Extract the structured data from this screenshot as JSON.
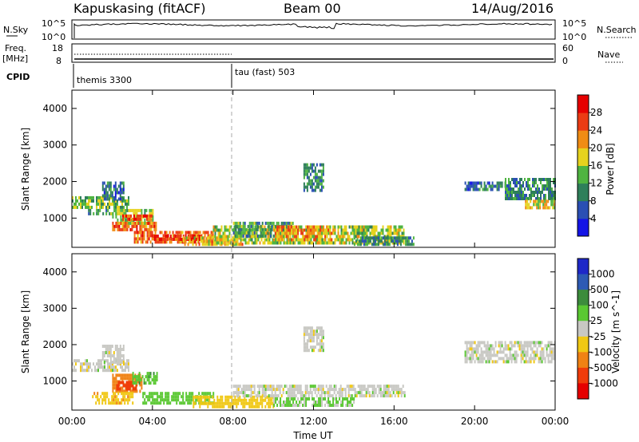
{
  "header": {
    "title": "Kapuskasing (fitACF)",
    "beam": "Beam 00",
    "date": "14/Aug/2016"
  },
  "status_panels": {
    "nsky_label": "N.Sky",
    "nsky_ticks": [
      "10^5",
      "10^0"
    ],
    "nsearch_label": "N.Search",
    "nsearch_ticks": [
      "10^5",
      "10^0"
    ],
    "freq_label": "Freq.",
    "freq_unit": "[MHz]",
    "freq_ticks": [
      "18",
      "8"
    ],
    "nave_label": "Nave",
    "nave_ticks": [
      "60",
      "0"
    ],
    "cpid_label": "CPID",
    "cpid_segments": [
      {
        "label": "themis 3300",
        "start_hour": 0
      },
      {
        "label": "tau (fast) 503",
        "start_hour": 8
      }
    ]
  },
  "chart_data": [
    {
      "type": "heatmap",
      "name": "power",
      "ylabel": "Slant Range [km]",
      "ylim": [
        200,
        4500
      ],
      "yticks": [
        1000,
        2000,
        3000,
        4000
      ],
      "xlim": [
        0,
        24
      ],
      "colorbar": {
        "label": "Power [dB]",
        "ticks": [
          "4",
          "8",
          "12",
          "16",
          "20",
          "24",
          "28"
        ],
        "colors": [
          "#1414e6",
          "#2a4fb4",
          "#2e7f5a",
          "#4fb441",
          "#e6d21e",
          "#f08c14",
          "#eb3c14",
          "#e60000"
        ]
      },
      "regions": [
        {
          "x": [
            0.0,
            2.8
          ],
          "y": [
            1300,
            1600
          ],
          "value": 14
        },
        {
          "x": [
            0.8,
            2.2
          ],
          "y": [
            1100,
            1250
          ],
          "value": 12
        },
        {
          "x": [
            1.5,
            2.6
          ],
          "y": [
            1500,
            2000
          ],
          "value": 8
        },
        {
          "x": [
            2.0,
            4.0
          ],
          "y": [
            900,
            1250
          ],
          "value": 16
        },
        {
          "x": [
            2.0,
            4.2
          ],
          "y": [
            700,
            900
          ],
          "value": 24
        },
        {
          "x": [
            2.5,
            4.0
          ],
          "y": [
            950,
            1100
          ],
          "value": 26
        },
        {
          "x": [
            3.0,
            7.0
          ],
          "y": [
            350,
            650
          ],
          "value": 24
        },
        {
          "x": [
            4.0,
            6.5
          ],
          "y": [
            400,
            550
          ],
          "value": 28
        },
        {
          "x": [
            5.5,
            8.5
          ],
          "y": [
            300,
            500
          ],
          "value": 20
        },
        {
          "x": [
            7.0,
            16.5
          ],
          "y": [
            300,
            800
          ],
          "value": 16
        },
        {
          "x": [
            8.0,
            11.0
          ],
          "y": [
            550,
            900
          ],
          "value": 12
        },
        {
          "x": [
            10.0,
            13.0
          ],
          "y": [
            400,
            800
          ],
          "value": 22
        },
        {
          "x": [
            11.5,
            12.5
          ],
          "y": [
            1800,
            2500
          ],
          "value": 10
        },
        {
          "x": [
            14.0,
            17.0
          ],
          "y": [
            300,
            500
          ],
          "value": 10
        },
        {
          "x": [
            19.5,
            21.5
          ],
          "y": [
            1750,
            2000
          ],
          "value": 8
        },
        {
          "x": [
            21.5,
            24.0
          ],
          "y": [
            1500,
            2100
          ],
          "value": 10
        },
        {
          "x": [
            22.5,
            24.0
          ],
          "y": [
            1300,
            1500
          ],
          "value": 18
        }
      ]
    },
    {
      "type": "heatmap",
      "name": "velocity",
      "ylabel": "Slant Range [km]",
      "ylim": [
        200,
        4500
      ],
      "yticks": [
        1000,
        2000,
        3000,
        4000
      ],
      "xlim": [
        0,
        24
      ],
      "xticks": [
        "00:00",
        "04:00",
        "08:00",
        "12:00",
        "16:00",
        "20:00",
        "00:00"
      ],
      "xlabel": "Time UT",
      "colorbar": {
        "label": "Velocity [m s^-1]",
        "ticks": [
          "1000",
          "500",
          "100",
          "25",
          "-25",
          "-100",
          "-500",
          "-1000"
        ],
        "colors": [
          "#1e28c8",
          "#2d5ab4",
          "#3c8c3c",
          "#5ac832",
          "#c8c8c3",
          "#f0c814",
          "#f08214",
          "#f03c0a",
          "#e60000"
        ]
      },
      "regions": [
        {
          "x": [
            0.0,
            2.8
          ],
          "y": [
            1300,
            1600
          ],
          "value": 0
        },
        {
          "x": [
            1.5,
            2.6
          ],
          "y": [
            1500,
            2000
          ],
          "value": 0
        },
        {
          "x": [
            2.0,
            3.5
          ],
          "y": [
            700,
            1200
          ],
          "value": -300
        },
        {
          "x": [
            2.2,
            3.2
          ],
          "y": [
            800,
            1000
          ],
          "value": -600
        },
        {
          "x": [
            3.0,
            4.2
          ],
          "y": [
            900,
            1250
          ],
          "value": 80
        },
        {
          "x": [
            1.0,
            3.0
          ],
          "y": [
            400,
            700
          ],
          "value": -80
        },
        {
          "x": [
            3.5,
            7.0
          ],
          "y": [
            400,
            700
          ],
          "value": 60
        },
        {
          "x": [
            6.0,
            10.0
          ],
          "y": [
            300,
            600
          ],
          "value": -60
        },
        {
          "x": [
            8.0,
            16.5
          ],
          "y": [
            550,
            900
          ],
          "value": 0
        },
        {
          "x": [
            10.0,
            14.0
          ],
          "y": [
            300,
            550
          ],
          "value": 40
        },
        {
          "x": [
            11.5,
            12.5
          ],
          "y": [
            1800,
            2500
          ],
          "value": 0
        },
        {
          "x": [
            19.5,
            24.0
          ],
          "y": [
            1500,
            2100
          ],
          "value": 0
        }
      ]
    }
  ]
}
